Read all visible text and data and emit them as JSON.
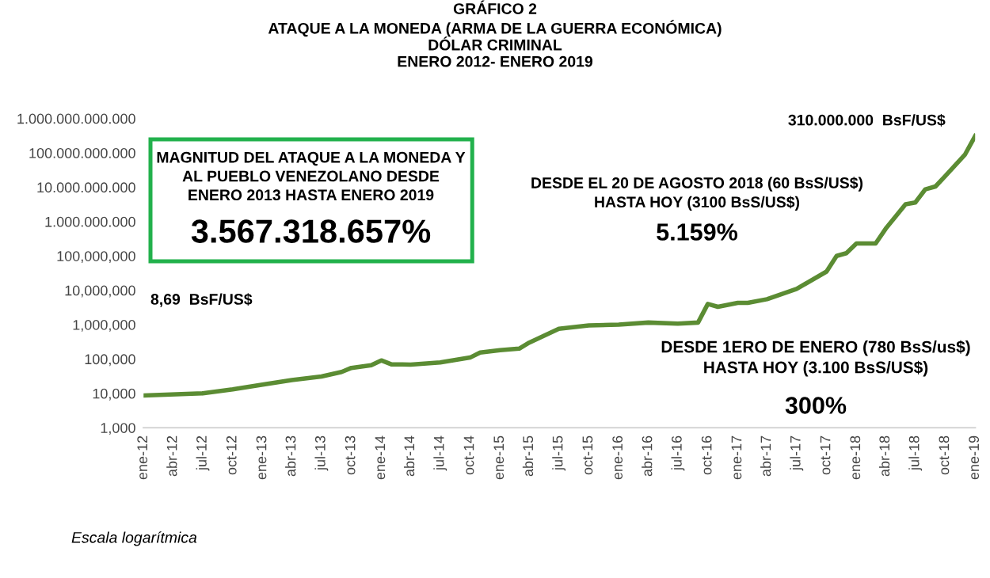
{
  "chart_data": {
    "type": "line",
    "title": "GRÁFICO 2\nATAQUE A LA MONEDA (ARMA DE LA GUERRA ECONÓMICA)\nDÓLAR CRIMINAL\nENERO 2012- ENERO 2019",
    "x": [
      "2012-01",
      "2012-07",
      "2012-10",
      "2013-01",
      "2013-04",
      "2013-07",
      "2013-09",
      "2013-10",
      "2013-12",
      "2014-01",
      "2014-02",
      "2014-04",
      "2014-07",
      "2014-10",
      "2014-11",
      "2015-01",
      "2015-03",
      "2015-04",
      "2015-07",
      "2015-10",
      "2016-01",
      "2016-04",
      "2016-07",
      "2016-09",
      "2016-10",
      "2016-11",
      "2017-01",
      "2017-02",
      "2017-04",
      "2017-07",
      "2017-10",
      "2017-11",
      "2017-12",
      "2018-01",
      "2018-03",
      "2018-04",
      "2018-06",
      "2018-07",
      "2018-08",
      "2018-09",
      "2018-10",
      "2018-12",
      "2019-01"
    ],
    "series": [
      {
        "color": "#5b8c33",
        "values": [
          8690,
          10000,
          13000,
          18000,
          24500,
          31000,
          42000,
          55000,
          66000,
          91000,
          70000,
          69000,
          79000,
          110000,
          155000,
          180000,
          200000,
          300000,
          760000,
          950000,
          1000000,
          1150000,
          1070000,
          1150000,
          4000000,
          3300000,
          4300000,
          4300000,
          5500000,
          11000000,
          35000000,
          100000000,
          120000000,
          230000000,
          230000000,
          620000000,
          3200000000,
          3600000000,
          8700000000,
          10500000000,
          21000000000,
          90000000000,
          310000000000
        ]
      }
    ],
    "log": "y",
    "ylim": [
      1000,
      1000000000000
    ],
    "yticks": [
      {
        "value": 1000,
        "label": "1,000"
      },
      {
        "value": 10000,
        "label": "10,000"
      },
      {
        "value": 100000,
        "label": "100,000"
      },
      {
        "value": 1000000,
        "label": "1,000,000"
      },
      {
        "value": 10000000,
        "label": "10,000,000"
      },
      {
        "value": 100000000,
        "label": "100,000,000"
      },
      {
        "value": 1000000000,
        "label": "1.000.000.000"
      },
      {
        "value": 10000000000,
        "label": "10.000.000.000"
      },
      {
        "value": 100000000000,
        "label": "100.000.000.000"
      },
      {
        "value": 1000000000000,
        "label": "1.000.000.000.000"
      }
    ],
    "xlim": [
      "2012-01",
      "2019-01"
    ],
    "xticks": [
      {
        "value": "2012-01",
        "label": "ene-12"
      },
      {
        "value": "2012-04",
        "label": "abr-12"
      },
      {
        "value": "2012-07",
        "label": "jul-12"
      },
      {
        "value": "2012-10",
        "label": "oct-12"
      },
      {
        "value": "2013-01",
        "label": "ene-13"
      },
      {
        "value": "2013-04",
        "label": "abr-13"
      },
      {
        "value": "2013-07",
        "label": "jul-13"
      },
      {
        "value": "2013-10",
        "label": "oct-13"
      },
      {
        "value": "2014-01",
        "label": "ene-14"
      },
      {
        "value": "2014-04",
        "label": "abr-14"
      },
      {
        "value": "2014-07",
        "label": "jul-14"
      },
      {
        "value": "2014-10",
        "label": "oct-14"
      },
      {
        "value": "2015-01",
        "label": "ene-15"
      },
      {
        "value": "2015-04",
        "label": "abr-15"
      },
      {
        "value": "2015-07",
        "label": "jul-15"
      },
      {
        "value": "2015-10",
        "label": "oct-15"
      },
      {
        "value": "2016-01",
        "label": "ene-16"
      },
      {
        "value": "2016-04",
        "label": "abr-16"
      },
      {
        "value": "2016-07",
        "label": "jul-16"
      },
      {
        "value": "2016-10",
        "label": "oct-16"
      },
      {
        "value": "2017-01",
        "label": "ene-17"
      },
      {
        "value": "2017-04",
        "label": "abr-17"
      },
      {
        "value": "2017-07",
        "label": "jul-17"
      },
      {
        "value": "2017-10",
        "label": "oct-17"
      },
      {
        "value": "2018-01",
        "label": "ene-18"
      },
      {
        "value": "2018-04",
        "label": "abr-18"
      },
      {
        "value": "2018-07",
        "label": "jul-18"
      },
      {
        "value": "2018-10",
        "label": "oct-18"
      },
      {
        "value": "2019-01",
        "label": "ene-19"
      }
    ],
    "grid": false,
    "annotations": [
      "8,69  BsF/US$",
      "310.000.000  BsF/US$",
      "MAGNITUD DEL ATAQUE A LA MONEDA Y\nAL PUEBLO VENEZOLANO DESDE\nENERO 2013 HASTA ENERO 2019",
      "3.567.318.657%",
      "DESDE EL 20 DE AGOSTO 2018 (60 BsS/US$)\nHASTA HOY (3100 BsS/US$)",
      "5.159%",
      "DESDE 1ERO DE ENERO (780 BsS/us$)\nHASTA HOY (3.100 BsS/US$)",
      "300%",
      "Escala logarítmica"
    ]
  }
}
